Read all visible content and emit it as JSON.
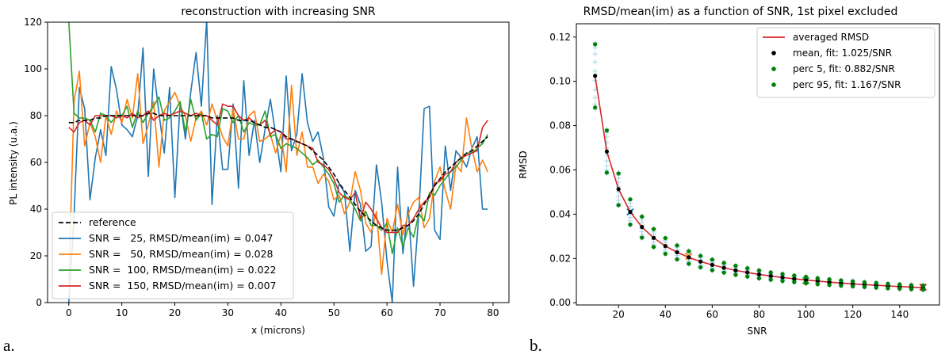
{
  "panel_labels": [
    "a.",
    "b."
  ],
  "chart_data": [
    {
      "type": "line",
      "title": "reconstruction with increasing SNR",
      "xlabel": "x (microns)",
      "ylabel": "PL intensity (u.a.)",
      "xlim": [
        -4,
        83
      ],
      "ylim": [
        0,
        120
      ],
      "xticks": [
        0,
        10,
        20,
        30,
        40,
        50,
        60,
        70,
        80
      ],
      "yticks": [
        0,
        20,
        40,
        60,
        80,
        100,
        120
      ],
      "grid": false,
      "legend_position": "lower-left",
      "series": [
        {
          "name": "reference",
          "color": "#000000",
          "dashed": true,
          "values": [
            77,
            77,
            78,
            78,
            78,
            79,
            79,
            80,
            80,
            80,
            80,
            80,
            80,
            80,
            80,
            81,
            81,
            80,
            80,
            80,
            80,
            80,
            80,
            80,
            80,
            80,
            80,
            79,
            79,
            79,
            79,
            79,
            78,
            78,
            78,
            77,
            76,
            75,
            75,
            74,
            73,
            71,
            70,
            69,
            68,
            67,
            65,
            63,
            61,
            58,
            55,
            51,
            48,
            45,
            42,
            39,
            37,
            35,
            33,
            32,
            31,
            31,
            31,
            32,
            33,
            35,
            38,
            42,
            46,
            50,
            53,
            56,
            58,
            60,
            62,
            64,
            65,
            67,
            69,
            71
          ]
        },
        {
          "name": "SNR =   25, RMSD/mean(im) = 0.047",
          "color": "#1f77b4",
          "dashed": false,
          "values": [
            0,
            37,
            92,
            83,
            44,
            62,
            74,
            63,
            101,
            91,
            76,
            74,
            71,
            80,
            109,
            54,
            100,
            81,
            64,
            92,
            45,
            86,
            70,
            90,
            107,
            84,
            121,
            42,
            80,
            57,
            57,
            85,
            49,
            95,
            63,
            78,
            60,
            74,
            87,
            72,
            56,
            97,
            65,
            72,
            98,
            77,
            69,
            73,
            62,
            41,
            37,
            51,
            47,
            22,
            48,
            42,
            22,
            24,
            59,
            43,
            18,
            0,
            58,
            21,
            41,
            7,
            38,
            83,
            84,
            31,
            27,
            67,
            48,
            65,
            62,
            58,
            66,
            71,
            40,
            40
          ]
        },
        {
          "name": "SNR =   50, RMSD/mean(im) = 0.028",
          "color": "#ff7f0e",
          "dashed": false,
          "values": [
            8,
            86,
            99,
            67,
            77,
            71,
            60,
            80,
            72,
            82,
            77,
            87,
            79,
            98,
            68,
            76,
            86,
            58,
            82,
            86,
            90,
            84,
            80,
            69,
            79,
            82,
            76,
            85,
            78,
            71,
            67,
            83,
            70,
            70,
            80,
            82,
            69,
            70,
            72,
            64,
            72,
            56,
            93,
            63,
            73,
            58,
            58,
            51,
            55,
            52,
            44,
            46,
            38,
            43,
            56,
            48,
            34,
            30,
            39,
            12,
            36,
            30,
            42,
            29,
            38,
            43,
            45,
            32,
            36,
            52,
            58,
            48,
            40,
            59,
            56,
            79,
            66,
            56,
            61,
            56
          ]
        },
        {
          "name": "SNR =  100, RMSD/mean(im) = 0.022",
          "color": "#2ca02c",
          "dashed": false,
          "values": [
            120,
            81,
            79,
            79,
            78,
            73,
            81,
            80,
            77,
            80,
            80,
            84,
            75,
            82,
            77,
            81,
            84,
            88,
            78,
            79,
            82,
            86,
            73,
            87,
            78,
            81,
            70,
            72,
            71,
            83,
            82,
            77,
            80,
            73,
            77,
            76,
            76,
            82,
            71,
            72,
            66,
            68,
            67,
            66,
            64,
            62,
            59,
            61,
            58,
            55,
            51,
            43,
            46,
            44,
            40,
            35,
            39,
            33,
            33,
            31,
            34,
            21,
            32,
            24,
            32,
            28,
            38,
            35,
            47,
            46,
            50,
            53,
            56,
            58,
            61,
            64,
            64,
            66,
            68,
            72
          ]
        },
        {
          "name": "SNR =  150, RMSD/mean(im) = 0.007",
          "color": "#d62728",
          "dashed": false,
          "values": [
            75,
            73,
            77,
            78,
            76,
            80,
            80,
            80,
            80,
            79,
            80,
            79,
            81,
            79,
            80,
            82,
            78,
            80,
            81,
            80,
            81,
            82,
            81,
            80,
            81,
            80,
            80,
            78,
            76,
            85,
            84,
            84,
            80,
            78,
            79,
            77,
            76,
            78,
            72,
            74,
            73,
            70,
            70,
            69,
            68,
            67,
            66,
            60,
            59,
            57,
            53,
            47,
            45,
            44,
            47,
            36,
            43,
            40,
            36,
            32,
            30,
            30,
            30,
            33,
            33,
            36,
            40,
            43,
            45,
            51,
            52,
            55,
            56,
            60,
            62,
            63,
            64,
            65,
            75,
            78
          ]
        }
      ]
    },
    {
      "type": "scatter",
      "title": "RMSD/mean(im) as a function of SNR, 1st pixel excluded",
      "xlabel": "SNR",
      "ylabel": "RMSD",
      "xlim": [
        2,
        157
      ],
      "ylim": [
        -0.001,
        0.126
      ],
      "xticks": [
        20,
        40,
        60,
        80,
        100,
        120,
        140
      ],
      "yticks": [
        0.0,
        0.02,
        0.04,
        0.06,
        0.08,
        0.1,
        0.12
      ],
      "ytick_labels": [
        "0.00",
        "0.02",
        "0.04",
        "0.06",
        "0.08",
        "0.10",
        "0.12"
      ],
      "grid": false,
      "legend_position": "upper-right",
      "snr": [
        10,
        15,
        20,
        25,
        30,
        35,
        40,
        45,
        50,
        55,
        60,
        65,
        70,
        75,
        80,
        85,
        90,
        95,
        100,
        105,
        110,
        115,
        120,
        125,
        130,
        135,
        140,
        145,
        150
      ],
      "series": [
        {
          "name": "averaged RMSD",
          "color": "#d62728",
          "kind": "line",
          "values": [
            0.1025,
            0.0683,
            0.0513,
            0.041,
            0.0342,
            0.0293,
            0.0256,
            0.0228,
            0.0205,
            0.0186,
            0.0171,
            0.0158,
            0.0146,
            0.0137,
            0.0128,
            0.0121,
            0.0114,
            0.0108,
            0.0103,
            0.0098,
            0.0093,
            0.0089,
            0.0085,
            0.0082,
            0.0079,
            0.0076,
            0.0073,
            0.0071,
            0.0068
          ]
        },
        {
          "name": "mean, fit: 1.025/SNR",
          "color": "#000000",
          "kind": "dots",
          "values": [
            0.1025,
            0.0683,
            0.0513,
            0.041,
            0.0342,
            0.0293,
            0.0256,
            0.0228,
            0.0205,
            0.0186,
            0.0171,
            0.0158,
            0.0146,
            0.0137,
            0.0128,
            0.0121,
            0.0114,
            0.0108,
            0.0103,
            0.0098,
            0.0093,
            0.0089,
            0.0085,
            0.0082,
            0.0079,
            0.0076,
            0.0073,
            0.0071,
            0.0068
          ]
        },
        {
          "name": "perc 5, fit: 0.882/SNR",
          "color": "#008000",
          "kind": "dots",
          "values": [
            0.0882,
            0.0588,
            0.0441,
            0.0353,
            0.0294,
            0.0252,
            0.0221,
            0.0196,
            0.0176,
            0.016,
            0.0147,
            0.0136,
            0.0126,
            0.0118,
            0.011,
            0.0104,
            0.0098,
            0.0093,
            0.0088,
            0.0084,
            0.008,
            0.0077,
            0.0074,
            0.0071,
            0.0068,
            0.0065,
            0.0063,
            0.0061,
            0.0059
          ]
        },
        {
          "name": "perc 95, fit: 1.167/SNR",
          "color": "#008000",
          "kind": "dots",
          "values": [
            0.1167,
            0.0778,
            0.0584,
            0.0467,
            0.0389,
            0.0333,
            0.0292,
            0.0259,
            0.0233,
            0.0212,
            0.0195,
            0.018,
            0.0167,
            0.0156,
            0.0146,
            0.0137,
            0.013,
            0.0123,
            0.0117,
            0.0111,
            0.0106,
            0.0101,
            0.0097,
            0.0093,
            0.009,
            0.0086,
            0.0083,
            0.008,
            0.0078
          ]
        }
      ],
      "cross_color": "#add8e6",
      "highlight_crosses": [
        {
          "snr": 25,
          "value": 0.041,
          "color": "#1f77b4"
        },
        {
          "snr": 50,
          "value": 0.021,
          "color": "#ff7f0e"
        },
        {
          "snr": 100,
          "value": 0.01,
          "color": "#2ca02c"
        },
        {
          "snr": 150,
          "value": 0.007,
          "color": "#d62728"
        }
      ]
    }
  ]
}
